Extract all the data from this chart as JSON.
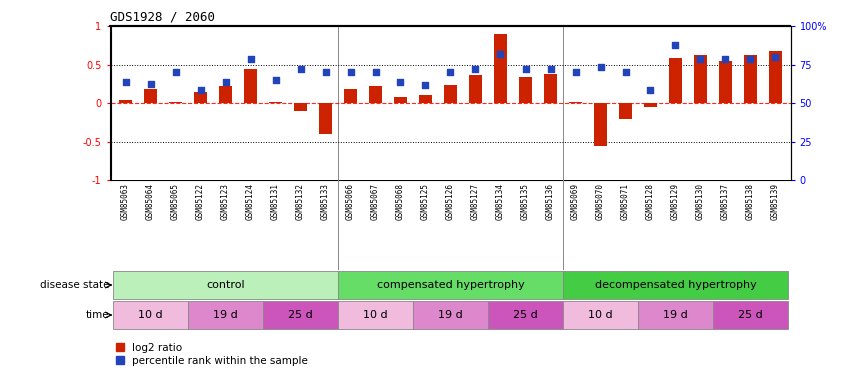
{
  "title": "GDS1928 / 2060",
  "samples": [
    "GSM85063",
    "GSM85064",
    "GSM85065",
    "GSM85122",
    "GSM85123",
    "GSM85124",
    "GSM85131",
    "GSM85132",
    "GSM85133",
    "GSM85066",
    "GSM85067",
    "GSM85068",
    "GSM85125",
    "GSM85126",
    "GSM85127",
    "GSM85134",
    "GSM85135",
    "GSM85136",
    "GSM85069",
    "GSM85070",
    "GSM85071",
    "GSM85128",
    "GSM85129",
    "GSM85130",
    "GSM85137",
    "GSM85138",
    "GSM85139"
  ],
  "log2_ratio": [
    0.04,
    0.18,
    0.02,
    0.14,
    0.22,
    0.44,
    0.02,
    -0.1,
    -0.4,
    0.18,
    0.22,
    0.08,
    0.1,
    0.24,
    0.37,
    0.9,
    0.34,
    0.38,
    0.01,
    -0.56,
    -0.2,
    -0.05,
    0.59,
    0.62,
    0.55,
    0.63,
    0.68
  ],
  "percentile_left_axis": [
    0.27,
    0.25,
    0.4,
    0.17,
    0.28,
    0.57,
    0.3,
    0.44,
    0.4,
    0.4,
    0.4,
    0.28,
    0.24,
    0.4,
    0.44,
    0.64,
    0.44,
    0.45,
    0.4,
    0.47,
    0.4,
    0.17,
    0.76,
    0.57,
    0.57,
    0.57,
    0.6
  ],
  "bar_color": "#cc2200",
  "dot_color": "#2244bb",
  "ylim": [
    -1.0,
    1.0
  ],
  "left_yticks": [
    -1.0,
    -0.5,
    0.0,
    0.5,
    1.0
  ],
  "left_yticklabels": [
    "-1",
    "-0.5",
    "0",
    "0.5",
    "1"
  ],
  "right_yticklabels": [
    "0",
    "25",
    "50",
    "75",
    "100%"
  ],
  "disease_groups": [
    {
      "label": "control",
      "start": 0,
      "end": 9,
      "color": "#bbf0bb"
    },
    {
      "label": "compensated hypertrophy",
      "start": 9,
      "end": 18,
      "color": "#66dd66"
    },
    {
      "label": "decompensated hypertrophy",
      "start": 18,
      "end": 27,
      "color": "#44cc44"
    }
  ],
  "time_groups": [
    {
      "label": "10 d",
      "start": 0,
      "end": 3,
      "color": "#f0bbdd"
    },
    {
      "label": "19 d",
      "start": 3,
      "end": 6,
      "color": "#dd88cc"
    },
    {
      "label": "25 d",
      "start": 6,
      "end": 9,
      "color": "#cc55bb"
    },
    {
      "label": "10 d",
      "start": 9,
      "end": 12,
      "color": "#f0bbdd"
    },
    {
      "label": "19 d",
      "start": 12,
      "end": 15,
      "color": "#dd88cc"
    },
    {
      "label": "25 d",
      "start": 15,
      "end": 18,
      "color": "#cc55bb"
    },
    {
      "label": "10 d",
      "start": 18,
      "end": 21,
      "color": "#f0bbdd"
    },
    {
      "label": "19 d",
      "start": 21,
      "end": 24,
      "color": "#dd88cc"
    },
    {
      "label": "25 d",
      "start": 24,
      "end": 27,
      "color": "#cc55bb"
    }
  ],
  "legend_labels": [
    "log2 ratio",
    "percentile rank within the sample"
  ],
  "legend_colors": [
    "#cc2200",
    "#2244bb"
  ],
  "disease_state_label": "disease state",
  "time_label": "time",
  "bar_width": 0.5
}
